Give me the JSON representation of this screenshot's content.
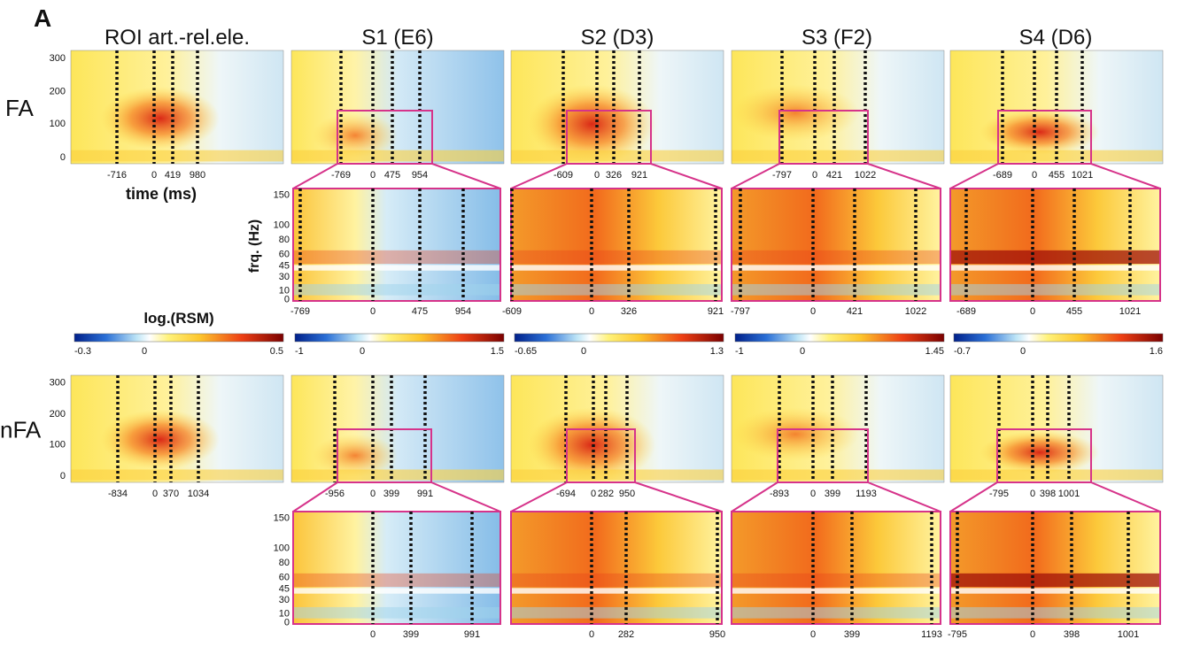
{
  "panel_label": "A",
  "column_titles": [
    "ROI art.-rel.ele.",
    "S1 (E6)",
    "S2 (D3)",
    "S3 (F2)",
    "S4 (D6)"
  ],
  "time_axis_label": "time (ms)",
  "frequency_axis_label": "frq. (Hz)",
  "colorbar_label": "log.(RSM)",
  "main_y_ticks": [
    "0",
    "100",
    "200",
    "300"
  ],
  "zoom_y_ticks": [
    "0",
    "10",
    "30",
    "45",
    "60",
    "80",
    "100",
    "150"
  ],
  "colorbars": [
    [
      "-0.3",
      "0",
      "0.5"
    ],
    [
      "-1",
      "0",
      "1.5"
    ],
    [
      "-0.65",
      "0",
      "1.3"
    ],
    [
      "-1",
      "0",
      "1.45"
    ],
    [
      "-0.7",
      "0",
      "1.6"
    ]
  ],
  "rows": [
    {
      "label": "FA",
      "time_ticks": [
        [
          "-716",
          "0",
          "419",
          "980"
        ],
        [
          "-769",
          "0",
          "475",
          "954"
        ],
        [
          "-609",
          "0",
          "326",
          "921"
        ],
        [
          "-797",
          "0",
          "421",
          "1022"
        ],
        [
          "-689",
          "0",
          "455",
          "1021"
        ]
      ],
      "zoom_ticks": [
        [
          "-769",
          "0",
          "475",
          "954"
        ],
        [
          "-609",
          "0",
          "326",
          "921"
        ],
        [
          "-797",
          "0",
          "421",
          "1022"
        ],
        [
          "-689",
          "0",
          "455",
          "1021"
        ]
      ]
    },
    {
      "label": "nFA",
      "time_ticks": [
        [
          "-834",
          "0",
          "370",
          "1034"
        ],
        [
          "-956",
          "0",
          "399",
          "991"
        ],
        [
          "-694",
          "0",
          "282",
          "950"
        ],
        [
          "-893",
          "0",
          "399",
          "1193"
        ],
        [
          "-795",
          "0",
          "398",
          "1001"
        ]
      ],
      "zoom_ticks": [
        [
          "0",
          "399",
          "991"
        ],
        [
          "0",
          "282",
          "950"
        ],
        [
          "0",
          "399",
          "1193"
        ],
        [
          "-795",
          "0",
          "398",
          "1001"
        ]
      ]
    }
  ]
}
